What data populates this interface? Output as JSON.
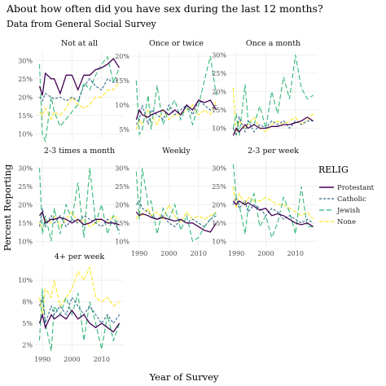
{
  "title": "About how often did you have sex during the last 12 months?",
  "subtitle": "Data from General Social Survey",
  "xlabel": "Year of Survey",
  "ylabel": "Percent Reporting",
  "legend": {
    "title": "RELIG",
    "position": "right",
    "entries": [
      "Protestant",
      "Catholic",
      "Jewish",
      "None"
    ]
  },
  "colors": {
    "Protestant": "#440154",
    "Catholic": "#31688e",
    "Jewish": "#35b779",
    "None": "#fde725"
  },
  "chart_data": [
    {
      "type": "line",
      "title": "Not at all",
      "x": [
        1989,
        1990,
        1991,
        1993,
        1994,
        1996,
        1998,
        2000,
        2002,
        2004,
        2006,
        2008,
        2010,
        2012,
        2014,
        2016
      ],
      "ylim": [
        8.5,
        32.5
      ],
      "yticks": [
        10,
        15,
        20,
        25,
        30
      ],
      "grid": true,
      "series": [
        {
          "name": "Protestant",
          "values": [
            23,
            20.5,
            26.5,
            25,
            25,
            21,
            26,
            26,
            22,
            26,
            26,
            27.5,
            28,
            29,
            30.5,
            28
          ]
        },
        {
          "name": "Catholic",
          "values": [
            20,
            19,
            21,
            20,
            19.5,
            20,
            19,
            20,
            19,
            23,
            25,
            23,
            22,
            25,
            24,
            25
          ]
        },
        {
          "name": "Jewish",
          "values": [
            29,
            10,
            8,
            20,
            16,
            12,
            14,
            16,
            18,
            24,
            22,
            26,
            29,
            31,
            24,
            28
          ]
        },
        {
          "name": "None",
          "values": [
            16,
            15,
            17,
            14,
            16,
            15,
            17,
            20,
            18,
            17,
            18,
            20,
            20,
            22,
            22,
            24
          ]
        }
      ]
    },
    {
      "type": "line",
      "title": "Once or twice",
      "x": [
        1989,
        1990,
        1991,
        1993,
        1994,
        1996,
        1998,
        2000,
        2002,
        2004,
        2006,
        2008,
        2010,
        2012,
        2014,
        2016
      ],
      "ylim": [
        3,
        21
      ],
      "yticks": [
        5,
        10,
        15,
        20
      ],
      "grid": true,
      "series": [
        {
          "name": "Protestant",
          "values": [
            7,
            9,
            8,
            7.5,
            8,
            8.5,
            9,
            8,
            9,
            8,
            10,
            9,
            11,
            10.5,
            11,
            9
          ]
        },
        {
          "name": "Catholic",
          "values": [
            6,
            7,
            10,
            6,
            9,
            8,
            7,
            10,
            8,
            9,
            10,
            8,
            11,
            10,
            9,
            10
          ]
        },
        {
          "name": "Jewish",
          "values": [
            15,
            4,
            5,
            12,
            5,
            14,
            6,
            9,
            11,
            7,
            10,
            6,
            10,
            15,
            20,
            12
          ]
        },
        {
          "name": "None",
          "values": [
            5,
            7,
            6,
            9,
            8,
            6,
            9,
            7,
            8,
            8,
            9,
            10,
            8,
            9,
            8,
            11
          ]
        }
      ]
    },
    {
      "type": "line",
      "title": "Once a month",
      "x": [
        1989,
        1990,
        1991,
        1993,
        1994,
        1996,
        1998,
        2000,
        2002,
        2004,
        2006,
        2008,
        2010,
        2012,
        2014,
        2016
      ],
      "ylim": [
        7,
        31
      ],
      "yticks": [
        10,
        15,
        20,
        25,
        30
      ],
      "grid": true,
      "series": [
        {
          "name": "Protestant",
          "values": [
            8,
            10,
            9,
            11,
            10,
            11,
            10,
            10,
            10.5,
            10.5,
            11,
            11,
            11.5,
            12,
            13,
            12
          ]
        },
        {
          "name": "Catholic",
          "values": [
            10,
            8,
            13,
            9,
            12,
            9,
            11,
            10,
            12,
            11,
            12,
            10,
            12,
            11,
            12,
            12
          ]
        },
        {
          "name": "Jewish",
          "values": [
            10,
            14,
            8,
            22,
            12,
            11,
            16,
            10,
            20,
            14,
            24,
            18,
            30,
            21,
            18,
            19
          ]
        },
        {
          "name": "None",
          "values": [
            21,
            8,
            12,
            10,
            11,
            13,
            10,
            9,
            11,
            12,
            11,
            12,
            13,
            11,
            12,
            14
          ]
        }
      ]
    },
    {
      "type": "line",
      "title": "2-3 times a month",
      "x": [
        1989,
        1990,
        1991,
        1993,
        1994,
        1996,
        1998,
        2000,
        2002,
        2004,
        2006,
        2008,
        2010,
        2012,
        2014,
        2016
      ],
      "ylim": [
        8.5,
        32.5
      ],
      "yticks": [
        10,
        15,
        20,
        25,
        30
      ],
      "grid": true,
      "series": [
        {
          "name": "Protestant",
          "values": [
            17,
            18,
            15,
            16,
            16,
            16.5,
            16,
            15,
            16,
            14.5,
            15,
            16,
            16,
            15,
            15,
            14.5
          ]
        },
        {
          "name": "Catholic",
          "values": [
            14,
            19,
            14,
            17,
            15,
            17,
            14,
            16,
            15,
            17,
            16,
            15,
            14,
            16,
            15,
            13
          ]
        },
        {
          "name": "Jewish",
          "values": [
            30,
            12,
            17,
            10,
            19,
            12,
            20,
            16,
            26,
            11,
            30,
            15,
            20,
            12,
            17,
            12
          ]
        },
        {
          "name": "None",
          "values": [
            15,
            13,
            16,
            15,
            17,
            14,
            16,
            18,
            15,
            16,
            14,
            15,
            16,
            15,
            17,
            16
          ]
        }
      ]
    },
    {
      "type": "line",
      "title": "Weekly",
      "x": [
        1989,
        1990,
        1991,
        1993,
        1994,
        1996,
        1998,
        2000,
        2002,
        2004,
        2006,
        2008,
        2010,
        2012,
        2014,
        2016
      ],
      "ylim": [
        8.5,
        32.5
      ],
      "yticks": [
        10,
        15,
        20,
        25,
        30
      ],
      "grid": true,
      "series": [
        {
          "name": "Protestant",
          "values": [
            18,
            17,
            17.5,
            17,
            16.5,
            16,
            16.5,
            16,
            15.5,
            16,
            15,
            15,
            14,
            13,
            12.5,
            15
          ]
        },
        {
          "name": "Catholic",
          "values": [
            20,
            21,
            19,
            18,
            17,
            16,
            17,
            15,
            14,
            16,
            15,
            16,
            15,
            14,
            16,
            17
          ]
        },
        {
          "name": "Jewish",
          "values": [
            29,
            16,
            30,
            20,
            21,
            12,
            19,
            16,
            20,
            13,
            17,
            10,
            11,
            14,
            16,
            18
          ]
        },
        {
          "name": "None",
          "values": [
            16,
            18,
            17,
            19,
            17,
            18,
            16,
            20,
            17,
            15,
            18,
            16,
            17,
            16,
            17,
            18
          ]
        }
      ]
    },
    {
      "type": "line",
      "title": "2-3 per week",
      "x": [
        1989,
        1990,
        1991,
        1993,
        1994,
        1996,
        1998,
        2000,
        2002,
        2004,
        2006,
        2008,
        2010,
        2012,
        2014,
        2016
      ],
      "ylim": [
        8.5,
        32.5
      ],
      "yticks": [
        10,
        15,
        20,
        25,
        30
      ],
      "grid": true,
      "series": [
        {
          "name": "Protestant",
          "values": [
            21,
            20,
            21,
            20,
            20.5,
            19.5,
            18.5,
            19,
            17,
            17.5,
            17,
            16,
            15,
            14.5,
            15,
            14
          ]
        },
        {
          "name": "Catholic",
          "values": [
            20,
            22,
            19,
            21,
            18,
            20,
            19,
            17,
            19,
            18,
            16,
            17,
            16,
            15,
            16,
            15
          ]
        },
        {
          "name": "Jewish",
          "values": [
            31,
            22,
            20,
            12,
            19,
            23,
            14,
            17,
            11,
            15,
            22,
            18,
            12,
            25,
            14,
            14
          ]
        },
        {
          "name": "None",
          "values": [
            25,
            19,
            23,
            20,
            22,
            21,
            21,
            22,
            21,
            20,
            20,
            19,
            18,
            17,
            18,
            16
          ]
        }
      ]
    },
    {
      "type": "line",
      "title": "4+ per week",
      "x": [
        1989,
        1990,
        1991,
        1993,
        1994,
        1996,
        1998,
        2000,
        2002,
        2004,
        2006,
        2008,
        2010,
        2012,
        2014,
        2016
      ],
      "ylim": [
        1.6,
        11.8
      ],
      "yticks": [
        2.5,
        5,
        7.5,
        10
      ],
      "ytick_labels": [
        "2%",
        "5%",
        "8%",
        "10%"
      ],
      "grid": true,
      "series": [
        {
          "name": "Protestant",
          "values": [
            5,
            6,
            4.5,
            6,
            5.5,
            6,
            5.5,
            6.5,
            5.5,
            6,
            5,
            4.5,
            5,
            4.5,
            4,
            5
          ]
        },
        {
          "name": "Catholic",
          "values": [
            7,
            8,
            5,
            7,
            6,
            7,
            6,
            8,
            7,
            6,
            7,
            6,
            5,
            6,
            5,
            6
          ]
        },
        {
          "name": "Jewish",
          "values": [
            3,
            9,
            5,
            1.8,
            7,
            6,
            8,
            6,
            8.5,
            3,
            7.5,
            5,
            2,
            6,
            3,
            5
          ]
        },
        {
          "name": "None",
          "values": [
            8,
            6,
            9,
            8,
            10,
            7,
            8,
            9,
            11,
            10,
            11.5,
            8,
            7.5,
            8,
            7,
            7.5
          ]
        }
      ]
    }
  ]
}
